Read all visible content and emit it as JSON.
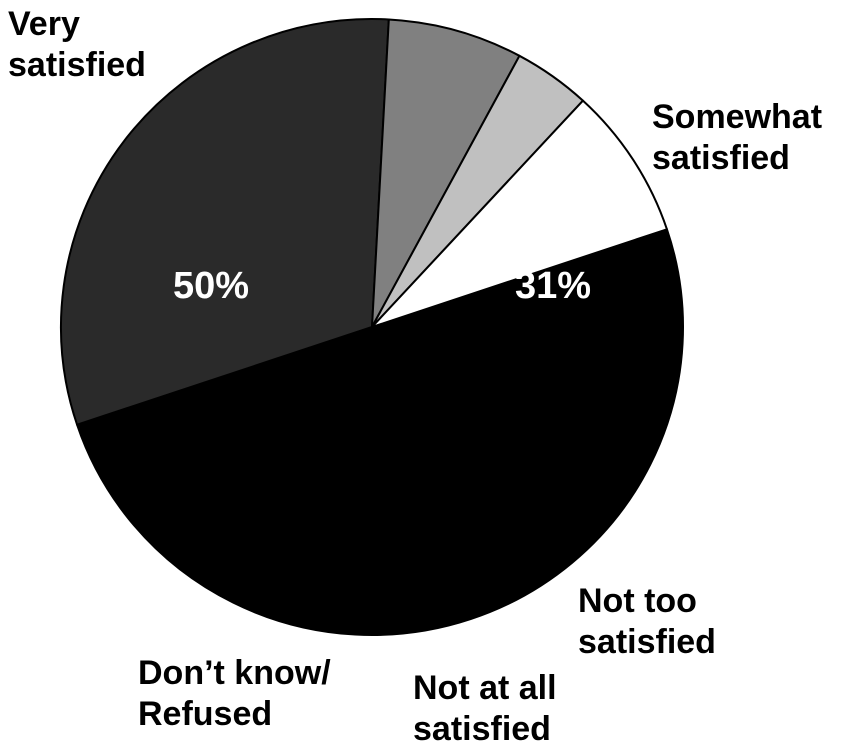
{
  "chart_data": {
    "type": "pie",
    "slices": [
      {
        "label_lines": [
          "Very",
          "satisfied"
        ],
        "value": 50,
        "display": "50%",
        "color": "#000000",
        "text_color": "#ffffff"
      },
      {
        "label_lines": [
          "Somewhat",
          "satisfied"
        ],
        "value": 31,
        "display": "31%",
        "color": "#2a2a2a",
        "text_color": "#ffffff"
      },
      {
        "label_lines": [
          "Not too",
          "satisfied"
        ],
        "value": 7,
        "display": "7%",
        "color": "#808080",
        "text_color": "#000000"
      },
      {
        "label_lines": [
          "Not at all",
          "satisfied"
        ],
        "value": 4,
        "display": "4%",
        "color": "#c0c0c0",
        "text_color": "#000000"
      },
      {
        "label_lines": [
          "Don’t know/",
          "Refused"
        ],
        "value": 8,
        "display": "8%",
        "color": "#ffffff",
        "text_color": "#000000"
      }
    ],
    "legend": "none"
  }
}
